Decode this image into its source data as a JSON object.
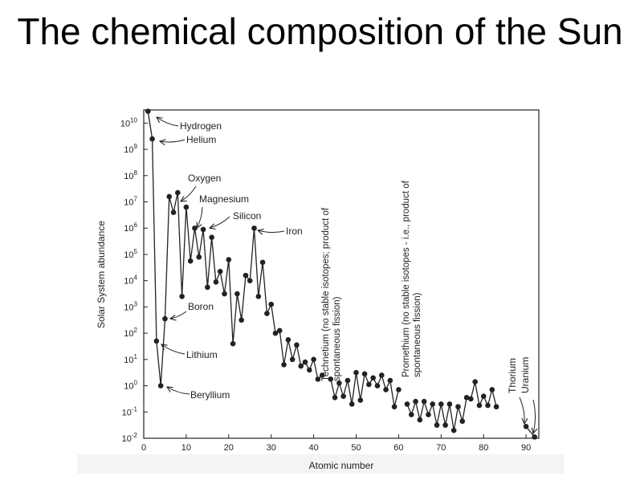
{
  "slide_title": "The chemical composition of the Sun",
  "chart_data": {
    "type": "line",
    "title": "",
    "xlabel": "Atomic number",
    "ylabel": "Solar System abundance",
    "y_scale": "log",
    "xlim": [
      0,
      93
    ],
    "ylim_exponent": [
      -2,
      10.5
    ],
    "x_ticks": [
      "0",
      "10",
      "20",
      "30",
      "40",
      "50",
      "60",
      "70",
      "80",
      "90"
    ],
    "y_tick_base": "10",
    "y_ticks": [
      "-2",
      "-1",
      "0",
      "1",
      "2",
      "3",
      "4",
      "5",
      "6",
      "7",
      "8",
      "9",
      "10"
    ],
    "series": [
      {
        "marker": "circle",
        "color": "#222222",
        "segments": [
          {
            "x": [
              1,
              2,
              3,
              4,
              5,
              6,
              7,
              8,
              9,
              10,
              11,
              12,
              13,
              14,
              15,
              16,
              17,
              18,
              19,
              20,
              21,
              22,
              23,
              24,
              25,
              26,
              27,
              28,
              29,
              30,
              31,
              32,
              33,
              34,
              35,
              36,
              37,
              38,
              39,
              40,
              41,
              42
            ],
            "y": [
              10.45,
              9.4,
              1.7,
              0.0,
              2.55,
              7.2,
              6.6,
              7.35,
              3.4,
              6.8,
              4.75,
              6.0,
              4.9,
              5.95,
              3.75,
              5.65,
              3.95,
              4.35,
              3.5,
              4.8,
              1.6,
              3.5,
              2.5,
              4.2,
              4.0,
              6.0,
              3.4,
              4.7,
              2.75,
              3.1,
              2.0,
              2.1,
              0.8,
              1.75,
              1.0,
              1.55,
              0.75,
              0.9,
              0.6,
              1.0,
              0.25,
              0.4
            ]
          },
          {
            "x": [
              44,
              45,
              46,
              47,
              48,
              49,
              50,
              51,
              52,
              53,
              54,
              55,
              56,
              57,
              58,
              59,
              60
            ],
            "y": [
              0.25,
              -0.45,
              0.1,
              -0.4,
              0.2,
              -0.7,
              0.5,
              -0.55,
              0.45,
              0.05,
              0.3,
              0.0,
              0.4,
              -0.15,
              0.2,
              -0.8,
              -0.15
            ]
          },
          {
            "x": [
              62,
              63,
              64,
              65,
              66,
              67,
              68,
              69,
              70,
              71,
              72,
              73,
              74,
              75,
              76,
              77,
              78,
              79,
              80,
              81,
              82,
              83
            ],
            "y": [
              -0.7,
              -1.1,
              -0.6,
              -1.3,
              -0.6,
              -1.1,
              -0.7,
              -1.5,
              -0.7,
              -1.5,
              -0.7,
              -1.7,
              -0.8,
              -1.35,
              -0.45,
              -0.5,
              0.15,
              -0.75,
              -0.4,
              -0.75,
              -0.15,
              -0.8
            ]
          },
          {
            "x": [
              90,
              92
            ],
            "y": [
              -1.55,
              -1.95
            ]
          }
        ]
      }
    ],
    "annotations": [
      {
        "text": "Hydrogen",
        "x": 1,
        "y": 10.45
      },
      {
        "text": "Helium",
        "x": 2,
        "y": 9.4
      },
      {
        "text": "Oxygen",
        "x": 8,
        "y": 7.35
      },
      {
        "text": "Magnesium",
        "x": 12,
        "y": 6.0
      },
      {
        "text": "Silicon",
        "x": 14,
        "y": 5.95
      },
      {
        "text": "Iron",
        "x": 26,
        "y": 6.0
      },
      {
        "text": "Boron",
        "x": 5,
        "y": 2.55
      },
      {
        "text": "Lithium",
        "x": 3,
        "y": 1.7
      },
      {
        "text": "Beryllium",
        "x": 4,
        "y": 0.0
      },
      {
        "text_lines": [
          "Technetium (no stable isotopes; product of",
          "spontaneous fission)"
        ],
        "x": 43
      },
      {
        "text_lines": [
          "Promethium (no stable isotopes - i.e., product of",
          "spontaneous fission)"
        ],
        "x": 61
      },
      {
        "text": "Thorium",
        "x": 90,
        "y": -1.55
      },
      {
        "text": "Uranium",
        "x": 92,
        "y": -1.95
      }
    ]
  }
}
